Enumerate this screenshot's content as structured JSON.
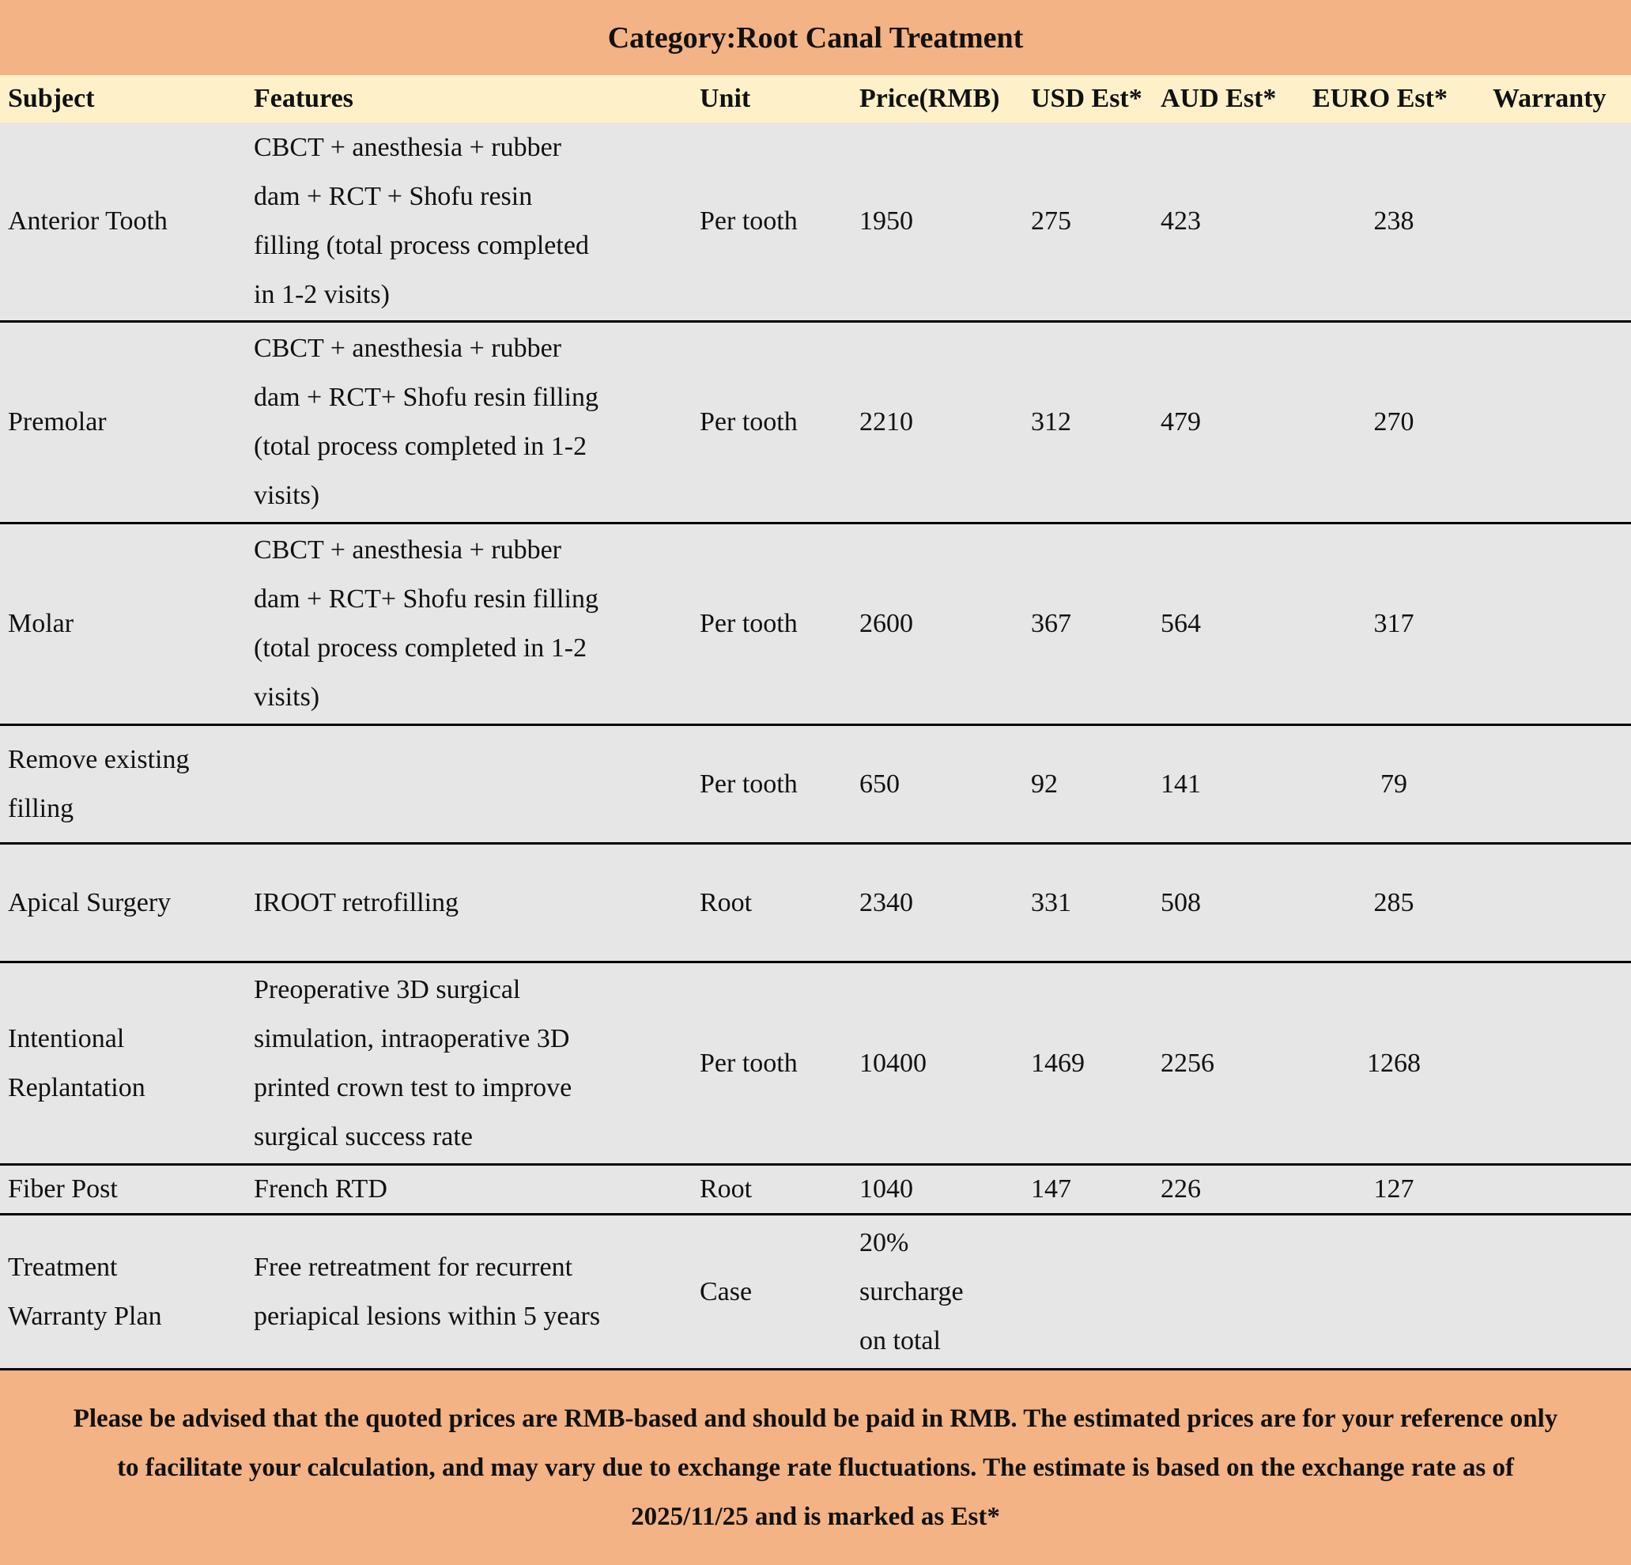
{
  "title": "Category:Root Canal Treatment",
  "headers": [
    "Subject",
    "Features",
    "Unit",
    "Price(RMB)",
    "USD Est*",
    "AUD Est*",
    "EURO Est*",
    "Warranty"
  ],
  "rows": [
    {
      "subject": [
        "Anterior Tooth"
      ],
      "features": [
        "CBCT + anesthesia + rubber",
        "dam + RCT + Shofu resin",
        "filling (total process completed",
        "in 1-2 visits)"
      ],
      "unit": "Per tooth",
      "price": [
        "1950"
      ],
      "usd": "275",
      "aud": "423",
      "euro": "238",
      "warranty": ""
    },
    {
      "subject": [
        "Premolar"
      ],
      "features": [
        "CBCT + anesthesia + rubber",
        "dam + RCT+ Shofu resin filling",
        "(total process completed in 1-2",
        "visits)"
      ],
      "unit": "Per tooth",
      "price": [
        "2210"
      ],
      "usd": "312",
      "aud": "479",
      "euro": "270",
      "warranty": ""
    },
    {
      "subject": [
        "Molar"
      ],
      "features": [
        "CBCT + anesthesia + rubber",
        "dam + RCT+ Shofu resin filling",
        "(total process completed in 1-2",
        "visits)"
      ],
      "unit": "Per tooth",
      "price": [
        "2600"
      ],
      "usd": "367",
      "aud": "564",
      "euro": "317",
      "warranty": ""
    },
    {
      "subject": [
        "Remove existing",
        "filling"
      ],
      "features": [],
      "unit": "Per tooth",
      "price": [
        "650"
      ],
      "usd": "92",
      "aud": "141",
      "euro": "79",
      "warranty": ""
    },
    {
      "subject": [
        "Apical Surgery"
      ],
      "features": [
        "IROOT retrofilling"
      ],
      "unit": "Root",
      "price": [
        "2340"
      ],
      "usd": "331",
      "aud": "508",
      "euro": "285",
      "warranty": ""
    },
    {
      "subject": [
        "Intentional",
        "Replantation"
      ],
      "features": [
        "Preoperative 3D surgical",
        "simulation, intraoperative 3D",
        "printed crown test to improve",
        "surgical success rate"
      ],
      "unit": "Per tooth",
      "price": [
        "10400"
      ],
      "usd": "1469",
      "aud": "2256",
      "euro": "1268",
      "warranty": ""
    },
    {
      "subject": [
        "Fiber Post"
      ],
      "features": [
        "French RTD"
      ],
      "unit": "Root",
      "price": [
        "1040"
      ],
      "usd": "147",
      "aud": "226",
      "euro": "127",
      "warranty": ""
    },
    {
      "subject": [
        "Treatment",
        "Warranty Plan"
      ],
      "features": [
        "Free retreatment for recurrent",
        "periapical lesions within 5 years"
      ],
      "unit": "Case",
      "price": [
        "20%",
        "surcharge",
        "on total"
      ],
      "usd": "",
      "aud": "",
      "euro": "",
      "warranty": ""
    }
  ],
  "footer_note": "Please be advised that the quoted prices are RMB-based and should be paid in RMB. The estimated prices are for your reference only to facilitate your calculation, and may vary due to exchange rate fluctuations. The estimate is based on the exchange rate as of 2025/11/25 and is marked as Est*",
  "colors": {
    "title_bg": "#f3b385",
    "header_bg": "#fef1c9",
    "body_bg": "#e6e6e6"
  }
}
